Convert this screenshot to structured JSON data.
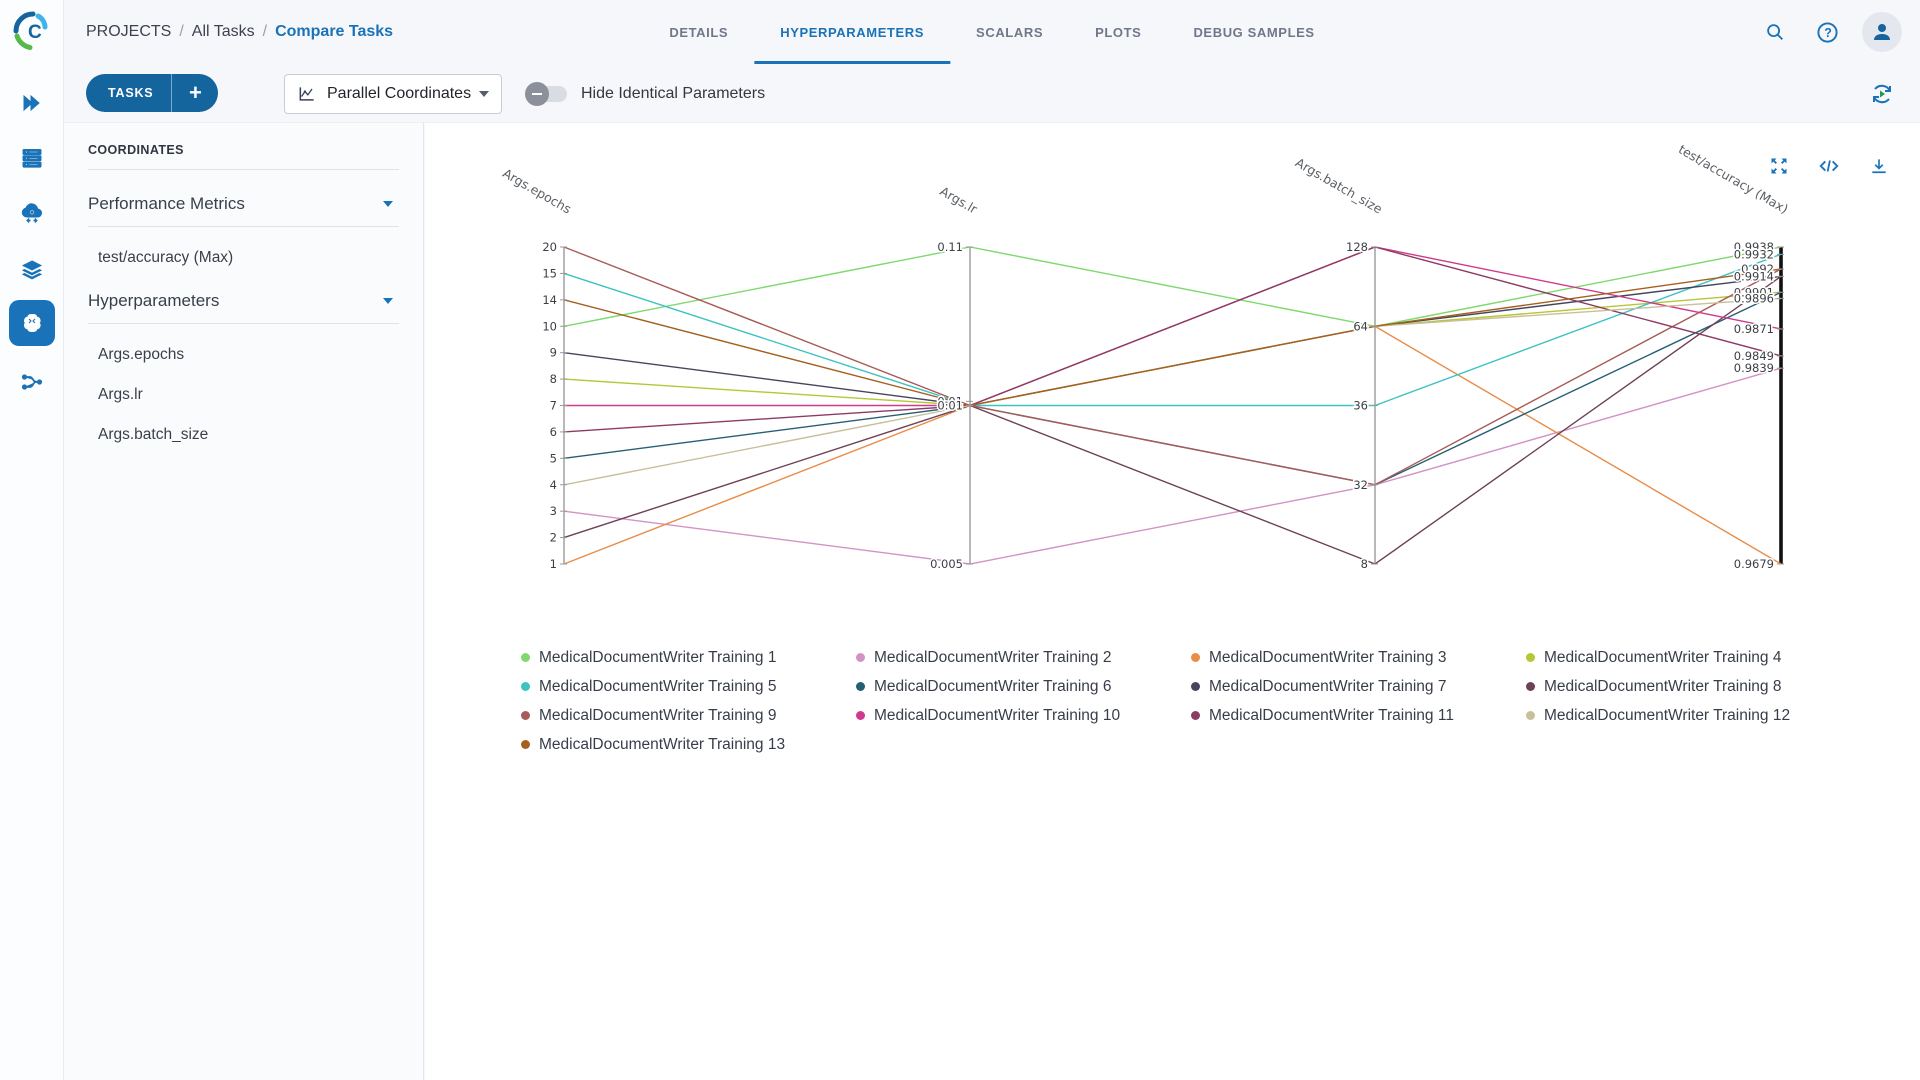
{
  "header": {
    "breadcrumb": [
      "PROJECTS",
      "All Tasks",
      "Compare Tasks"
    ],
    "breadcrumb_separator": "/",
    "tabs": [
      {
        "label": "DETAILS"
      },
      {
        "label": "HYPERPARAMETERS"
      },
      {
        "label": "SCALARS"
      },
      {
        "label": "PLOTS"
      },
      {
        "label": "DEBUG SAMPLES"
      }
    ],
    "active_tab": "HYPERPARAMETERS",
    "icons": [
      "search-icon",
      "help-icon",
      "user-icon"
    ]
  },
  "sidebar": {
    "icons": [
      "expand-rail-icon",
      "queues-icon",
      "workers-icon",
      "datasets-icon",
      "projects-brain-icon",
      "pipelines-icon"
    ],
    "active_icon": "projects-brain-icon"
  },
  "toolbar": {
    "tasks_label": "TASKS",
    "add_label": "+",
    "view_selector": "Parallel Coordinates",
    "view_selector_icon": "line-chart-icon",
    "toggle_label": "Hide Identical Parameters",
    "toggle_state": "off",
    "refresh_icon": "auto-refresh-icon"
  },
  "panel": {
    "title": "COORDINATES",
    "sections": [
      {
        "label": "Performance Metrics",
        "items": [
          "test/accuracy (Max)"
        ]
      },
      {
        "label": "Hyperparameters",
        "items": [
          "Args.epochs",
          "Args.lr",
          "Args.batch_size"
        ]
      }
    ]
  },
  "chart_actions": [
    "maximize-icon",
    "code-icon",
    "download-icon"
  ],
  "colors": {
    "accent": "#1a73b8",
    "button_blue": "#14649e",
    "axis_gray": "#9a9a9a",
    "highlight_axis": "#111111",
    "refresh_play_green": "#1e9b52"
  },
  "chart_data": {
    "type": "parallel-coordinates",
    "axes": [
      {
        "title": "Args.epochs",
        "kind": "categorical",
        "categories": [
          "20",
          "15",
          "14",
          "10",
          "9",
          "8",
          "7",
          "6",
          "5",
          "4",
          "3",
          "2",
          "1"
        ]
      },
      {
        "title": "Args.lr",
        "kind": "categorical",
        "categories": [
          "0.11",
          "0.01",
          "0.005"
        ],
        "ticks": [
          {
            "label": "0.11",
            "t": 0
          },
          {
            "label": "0.01",
            "t": 0.487
          },
          {
            "label": "0.01",
            "t": 0.5
          },
          {
            "label": "0.005",
            "t": 1
          }
        ]
      },
      {
        "title": "Args.batch_size",
        "kind": "categorical",
        "categories": [
          "128",
          "64",
          "36",
          "32",
          "8"
        ]
      },
      {
        "title": "test/accuracy (Max)",
        "kind": "numeric",
        "bold": true,
        "domain": [
          0.9938,
          0.9679
        ],
        "tick_labels": [
          "0.9938",
          "0.9932",
          "0.992",
          "0.9914",
          "0.9901",
          "0.9896",
          "0.9871",
          "0.9849",
          "0.9839",
          "0.9679"
        ]
      }
    ],
    "series": [
      {
        "name": "MedicalDocumentWriter Training 1",
        "color": "#7fd96d",
        "values": [
          "10",
          "0.11",
          "64",
          0.9938
        ]
      },
      {
        "name": "MedicalDocumentWriter Training 2",
        "color": "#d392c5",
        "values": [
          "3",
          "0.005",
          "32",
          0.9839
        ]
      },
      {
        "name": "MedicalDocumentWriter Training 3",
        "color": "#e98c47",
        "values": [
          "1",
          "0.01",
          "64",
          0.9679
        ]
      },
      {
        "name": "MedicalDocumentWriter Training 4",
        "color": "#b5c734",
        "values": [
          "8",
          "0.01",
          "64",
          0.9901
        ]
      },
      {
        "name": "MedicalDocumentWriter Training 5",
        "color": "#3dc3c1",
        "values": [
          "15",
          "0.01",
          "36",
          0.9932
        ]
      },
      {
        "name": "MedicalDocumentWriter Training 6",
        "color": "#265f74",
        "values": [
          "5",
          "0.01",
          "32",
          0.9901
        ]
      },
      {
        "name": "MedicalDocumentWriter Training 7",
        "color": "#45465e",
        "values": [
          "9",
          "0.01",
          "64",
          0.9914
        ]
      },
      {
        "name": "MedicalDocumentWriter Training 8",
        "color": "#6e4156",
        "values": [
          "2",
          "0.01",
          "8",
          0.9914
        ]
      },
      {
        "name": "MedicalDocumentWriter Training 9",
        "color": "#a85b57",
        "values": [
          "20",
          "0.01",
          "32",
          0.992
        ]
      },
      {
        "name": "MedicalDocumentWriter Training 10",
        "color": "#d03a8c",
        "values": [
          "7",
          "0.01",
          "128",
          0.9871
        ]
      },
      {
        "name": "MedicalDocumentWriter Training 11",
        "color": "#8e3b63",
        "values": [
          "6",
          "0.01",
          "128",
          0.9849
        ]
      },
      {
        "name": "MedicalDocumentWriter Training 12",
        "color": "#c7c09a",
        "values": [
          "4",
          "0.01",
          "64",
          0.9896
        ]
      },
      {
        "name": "MedicalDocumentWriter Training 13",
        "color": "#a55f1e",
        "values": [
          "14",
          "0.01",
          "64",
          0.992
        ]
      }
    ],
    "legend_position": "bottom",
    "grid": false
  }
}
